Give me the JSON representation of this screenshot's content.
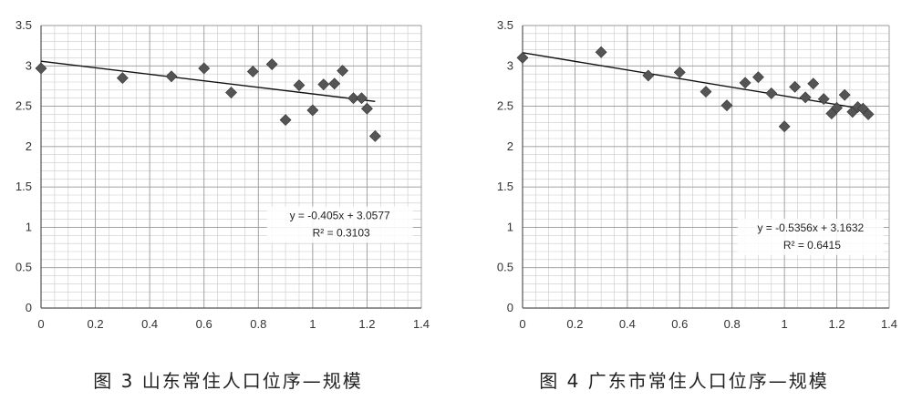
{
  "chart_data": [
    {
      "type": "scatter",
      "caption": "图 3   山东常住人口位序—规模",
      "xlim": [
        0,
        1.4
      ],
      "ylim": [
        0,
        3.5
      ],
      "x_ticks": [
        "0",
        "0.2",
        "0.4",
        "0.6",
        "0.8",
        "1",
        "1.2",
        "1.4"
      ],
      "y_ticks": [
        "0",
        "0.5",
        "1",
        "1.5",
        "2",
        "2.5",
        "3",
        "3.5"
      ],
      "grid": true,
      "points": [
        {
          "x": 0.0,
          "y": 2.97
        },
        {
          "x": 0.3,
          "y": 2.85
        },
        {
          "x": 0.48,
          "y": 2.87
        },
        {
          "x": 0.6,
          "y": 2.97
        },
        {
          "x": 0.7,
          "y": 2.67
        },
        {
          "x": 0.78,
          "y": 2.93
        },
        {
          "x": 0.85,
          "y": 3.02
        },
        {
          "x": 0.9,
          "y": 2.33
        },
        {
          "x": 0.95,
          "y": 2.76
        },
        {
          "x": 1.0,
          "y": 2.45
        },
        {
          "x": 1.04,
          "y": 2.77
        },
        {
          "x": 1.08,
          "y": 2.78
        },
        {
          "x": 1.11,
          "y": 2.94
        },
        {
          "x": 1.15,
          "y": 2.6
        },
        {
          "x": 1.18,
          "y": 2.6
        },
        {
          "x": 1.2,
          "y": 2.47
        },
        {
          "x": 1.23,
          "y": 2.13
        }
      ],
      "trendline": {
        "slope": -0.405,
        "intercept": 3.0577,
        "x_range": [
          0,
          1.23
        ]
      },
      "equation": "y = -0.405x + 3.0577",
      "r2": "R² = 0.3103",
      "ann_pos": {
        "x": 1.1,
        "y": 1.1
      }
    },
    {
      "type": "scatter",
      "caption": "图 4   广东市常住人口位序—规模",
      "xlim": [
        0,
        1.4
      ],
      "ylim": [
        0,
        3.5
      ],
      "x_ticks": [
        "0",
        "0.2",
        "0.4",
        "0.6",
        "0.8",
        "1",
        "1.2",
        "1.4"
      ],
      "y_ticks": [
        "0",
        "0.5",
        "1",
        "1.5",
        "2",
        "2.5",
        "3",
        "3.5"
      ],
      "grid": true,
      "points": [
        {
          "x": 0.0,
          "y": 3.1
        },
        {
          "x": 0.3,
          "y": 3.17
        },
        {
          "x": 0.48,
          "y": 2.88
        },
        {
          "x": 0.6,
          "y": 2.92
        },
        {
          "x": 0.7,
          "y": 2.68
        },
        {
          "x": 0.78,
          "y": 2.51
        },
        {
          "x": 0.85,
          "y": 2.79
        },
        {
          "x": 0.9,
          "y": 2.86
        },
        {
          "x": 0.95,
          "y": 2.66
        },
        {
          "x": 1.0,
          "y": 2.25
        },
        {
          "x": 1.04,
          "y": 2.74
        },
        {
          "x": 1.08,
          "y": 2.61
        },
        {
          "x": 1.11,
          "y": 2.78
        },
        {
          "x": 1.15,
          "y": 2.59
        },
        {
          "x": 1.18,
          "y": 2.41
        },
        {
          "x": 1.2,
          "y": 2.48
        },
        {
          "x": 1.23,
          "y": 2.64
        },
        {
          "x": 1.26,
          "y": 2.43
        },
        {
          "x": 1.28,
          "y": 2.49
        },
        {
          "x": 1.3,
          "y": 2.47
        },
        {
          "x": 1.32,
          "y": 2.4
        }
      ],
      "trendline": {
        "slope": -0.5356,
        "intercept": 3.1632,
        "x_range": [
          0,
          1.32
        ]
      },
      "equation": "y = -0.5356x + 3.1632",
      "r2": "R² = 0.6415",
      "ann_pos": {
        "x": 1.1,
        "y": 0.95
      }
    }
  ]
}
